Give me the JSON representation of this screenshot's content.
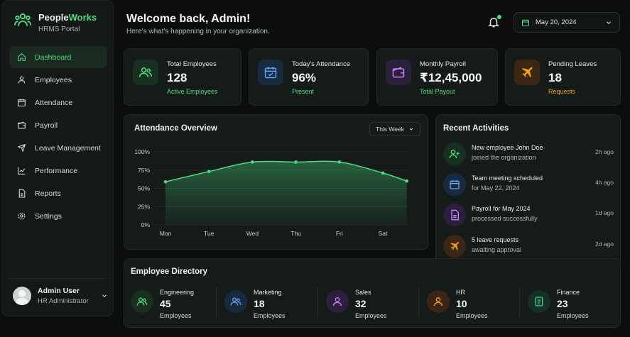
{
  "brand": {
    "name_part1": "People",
    "name_part2": "Works",
    "subtitle": "HRMS Portal"
  },
  "sidebar": {
    "items": [
      {
        "label": "Dashboard",
        "icon": "home-icon",
        "active": true
      },
      {
        "label": "Employees",
        "icon": "user-icon"
      },
      {
        "label": "Attendance",
        "icon": "calendar-icon"
      },
      {
        "label": "Payroll",
        "icon": "wallet-icon"
      },
      {
        "label": "Leave Management",
        "icon": "plane-icon"
      },
      {
        "label": "Performance",
        "icon": "chart-icon"
      },
      {
        "label": "Reports",
        "icon": "file-icon"
      },
      {
        "label": "Settings",
        "icon": "gear-icon"
      }
    ]
  },
  "profile": {
    "name": "Admin User",
    "role": "HR Administrator"
  },
  "header": {
    "title": "Welcome back, Admin!",
    "subtitle": "Here's what's happening in your organization.",
    "date": "May 20, 2024"
  },
  "stats": [
    {
      "label": "Total Employees",
      "value": "128",
      "sub": "Active Employees",
      "color": "#4ade80",
      "icon": "users-icon"
    },
    {
      "label": "Today's Attendance",
      "value": "96%",
      "sub": "Present",
      "color": "#4ade80",
      "icon": "calendar-check-icon"
    },
    {
      "label": "Monthly Payroll",
      "value": "₹12,45,000",
      "sub": "Total Payout",
      "color": "#4ade80",
      "icon": "wallet-icon"
    },
    {
      "label": "Pending Leaves",
      "value": "18",
      "sub": "Requests",
      "color": "#f59e0b",
      "icon": "plane-icon"
    }
  ],
  "attendance": {
    "title": "Attendance Overview",
    "range": "This Week"
  },
  "chart_data": {
    "type": "area",
    "title": "Attendance Overview",
    "categories": [
      "Mon",
      "Tue",
      "Wed",
      "Thu",
      "Fri",
      "Sat"
    ],
    "x": [
      0,
      1,
      2,
      3,
      4,
      5,
      5.55
    ],
    "values": [
      59,
      73,
      86,
      86,
      86,
      71,
      60
    ],
    "y_ticks": [
      "0%",
      "25%",
      "50%",
      "75%",
      "100%"
    ],
    "ylim": [
      0,
      100
    ],
    "grid": true,
    "color": "#4ade80"
  },
  "activities_title": "Recent Activities",
  "activities": [
    {
      "title": "New employee John Doe",
      "sub": "joined the organization",
      "time": "2h ago",
      "icon": "user-plus-icon"
    },
    {
      "title": "Team meeting scheduled",
      "sub": "for May 22, 2024",
      "time": "4h ago",
      "icon": "calendar-icon"
    },
    {
      "title": "Payroll for May 2024",
      "sub": "processed successfully",
      "time": "1d ago",
      "icon": "file-icon"
    },
    {
      "title": "5 leave requests",
      "sub": "awaiting approval",
      "time": "2d ago",
      "icon": "plane-icon"
    }
  ],
  "directory": {
    "title": "Employee Directory",
    "unit": "Employees",
    "departments": [
      {
        "name": "Engineering",
        "count": "45",
        "icon": "users-icon"
      },
      {
        "name": "Marketing",
        "count": "18",
        "icon": "users-icon"
      },
      {
        "name": "Sales",
        "count": "32",
        "icon": "user-icon"
      },
      {
        "name": "HR",
        "count": "10",
        "icon": "user-icon"
      },
      {
        "name": "Finance",
        "count": "23",
        "icon": "document-icon"
      }
    ]
  },
  "colors": {
    "accent": "#4ade80",
    "blue": "#60a5fa",
    "purple": "#c084fc",
    "orange": "#f59e0b",
    "background": "#0b0e0d"
  }
}
